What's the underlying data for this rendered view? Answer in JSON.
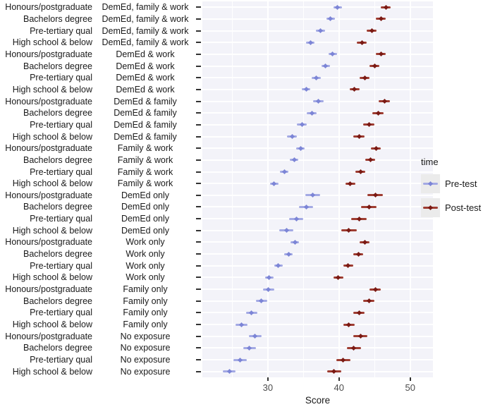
{
  "chart_data": {
    "type": "scatter",
    "subtype": "pointrange-forest-plot",
    "title": "",
    "xlabel": "Score",
    "x_ticks": [
      30,
      40,
      50
    ],
    "x_minor_ticks": [
      25,
      35,
      45
    ],
    "xlim": [
      20.8,
      53.2
    ],
    "grid": "on",
    "legend_position": "right",
    "legend": {
      "title": "time",
      "entries": [
        {
          "label": "Pre-test",
          "line_color": "#a3a9e4",
          "marker_color": "#7c85d6"
        },
        {
          "label": "Post-test",
          "line_color": "#9e3c31",
          "marker_color": "#7a1a14"
        }
      ]
    },
    "y_axis": {
      "education_levels": [
        "Honours/postgraduate",
        "Bachelors degree",
        "Pre-tertiary qual",
        "High school & below"
      ],
      "exposure_groups": [
        "DemEd, family & work",
        "DemEd & work",
        "DemEd & family",
        "Family & work",
        "DemEd only",
        "Work only",
        "Family only",
        "No exposure"
      ]
    },
    "rows": [
      {
        "education": "Honours/postgraduate",
        "exposure": "DemEd, family & work",
        "pre": 39.8,
        "pre_err": 0.6,
        "post": 46.6,
        "post_err": 0.7
      },
      {
        "education": "Bachelors degree",
        "exposure": "DemEd, family & work",
        "pre": 38.8,
        "pre_err": 0.6,
        "post": 45.9,
        "post_err": 0.7
      },
      {
        "education": "Pre-tertiary qual",
        "exposure": "DemEd, family & work",
        "pre": 37.4,
        "pre_err": 0.6,
        "post": 44.6,
        "post_err": 0.7
      },
      {
        "education": "High school & below",
        "exposure": "DemEd, family & work",
        "pre": 36.0,
        "pre_err": 0.6,
        "post": 43.2,
        "post_err": 0.7
      },
      {
        "education": "Honours/postgraduate",
        "exposure": "DemEd & work",
        "pre": 39.1,
        "pre_err": 0.6,
        "post": 45.9,
        "post_err": 0.7
      },
      {
        "education": "Bachelors degree",
        "exposure": "DemEd & work",
        "pre": 38.1,
        "pre_err": 0.6,
        "post": 45.0,
        "post_err": 0.7
      },
      {
        "education": "Pre-tertiary qual",
        "exposure": "DemEd & work",
        "pre": 36.8,
        "pre_err": 0.6,
        "post": 43.6,
        "post_err": 0.7
      },
      {
        "education": "High school & below",
        "exposure": "DemEd & work",
        "pre": 35.4,
        "pre_err": 0.6,
        "post": 42.2,
        "post_err": 0.7
      },
      {
        "education": "Honours/postgraduate",
        "exposure": "DemEd & family",
        "pre": 37.1,
        "pre_err": 0.7,
        "post": 46.4,
        "post_err": 0.8
      },
      {
        "education": "Bachelors degree",
        "exposure": "DemEd & family",
        "pre": 36.2,
        "pre_err": 0.7,
        "post": 45.5,
        "post_err": 0.8
      },
      {
        "education": "Pre-tertiary qual",
        "exposure": "DemEd & family",
        "pre": 34.8,
        "pre_err": 0.7,
        "post": 44.2,
        "post_err": 0.8
      },
      {
        "education": "High school & below",
        "exposure": "DemEd & family",
        "pre": 33.4,
        "pre_err": 0.7,
        "post": 42.8,
        "post_err": 0.8
      },
      {
        "education": "Honours/postgraduate",
        "exposure": "Family & work",
        "pre": 34.6,
        "pre_err": 0.6,
        "post": 45.2,
        "post_err": 0.7
      },
      {
        "education": "Bachelors degree",
        "exposure": "Family & work",
        "pre": 33.7,
        "pre_err": 0.6,
        "post": 44.4,
        "post_err": 0.7
      },
      {
        "education": "Pre-tertiary qual",
        "exposure": "Family & work",
        "pre": 32.3,
        "pre_err": 0.6,
        "post": 43.0,
        "post_err": 0.7
      },
      {
        "education": "High school & below",
        "exposure": "Family & work",
        "pre": 30.9,
        "pre_err": 0.6,
        "post": 41.6,
        "post_err": 0.7
      },
      {
        "education": "Honours/postgraduate",
        "exposure": "DemEd only",
        "pre": 36.3,
        "pre_err": 1.0,
        "post": 45.1,
        "post_err": 1.1
      },
      {
        "education": "Bachelors degree",
        "exposure": "DemEd only",
        "pre": 35.4,
        "pre_err": 1.0,
        "post": 44.2,
        "post_err": 1.1
      },
      {
        "education": "Pre-tertiary qual",
        "exposure": "DemEd only",
        "pre": 34.0,
        "pre_err": 1.0,
        "post": 42.8,
        "post_err": 1.1
      },
      {
        "education": "High school & below",
        "exposure": "DemEd only",
        "pre": 32.6,
        "pre_err": 1.0,
        "post": 41.4,
        "post_err": 1.1
      },
      {
        "education": "Honours/postgraduate",
        "exposure": "Work only",
        "pre": 33.8,
        "pre_err": 0.6,
        "post": 43.6,
        "post_err": 0.7
      },
      {
        "education": "Bachelors degree",
        "exposure": "Work only",
        "pre": 32.9,
        "pre_err": 0.6,
        "post": 42.7,
        "post_err": 0.7
      },
      {
        "education": "Pre-tertiary qual",
        "exposure": "Work only",
        "pre": 31.5,
        "pre_err": 0.6,
        "post": 41.3,
        "post_err": 0.7
      },
      {
        "education": "High school & below",
        "exposure": "Work only",
        "pre": 30.2,
        "pre_err": 0.6,
        "post": 39.9,
        "post_err": 0.7
      },
      {
        "education": "Honours/postgraduate",
        "exposure": "Family only",
        "pre": 30.1,
        "pre_err": 0.8,
        "post": 45.1,
        "post_err": 0.8
      },
      {
        "education": "Bachelors degree",
        "exposure": "Family only",
        "pre": 29.1,
        "pre_err": 0.8,
        "post": 44.2,
        "post_err": 0.8
      },
      {
        "education": "Pre-tertiary qual",
        "exposure": "Family only",
        "pre": 27.7,
        "pre_err": 0.8,
        "post": 42.8,
        "post_err": 0.8
      },
      {
        "education": "High school & below",
        "exposure": "Family only",
        "pre": 26.3,
        "pre_err": 0.8,
        "post": 41.4,
        "post_err": 0.8
      },
      {
        "education": "Honours/postgraduate",
        "exposure": "No exposure",
        "pre": 28.2,
        "pre_err": 0.9,
        "post": 43.0,
        "post_err": 1.0
      },
      {
        "education": "Bachelors degree",
        "exposure": "No exposure",
        "pre": 27.4,
        "pre_err": 0.9,
        "post": 42.1,
        "post_err": 1.0
      },
      {
        "education": "Pre-tertiary qual",
        "exposure": "No exposure",
        "pre": 26.1,
        "pre_err": 0.9,
        "post": 40.6,
        "post_err": 1.0
      },
      {
        "education": "High school & below",
        "exposure": "No exposure",
        "pre": 24.6,
        "pre_err": 0.9,
        "post": 39.3,
        "post_err": 1.0
      }
    ],
    "style": {
      "panel_bg": "#f3f3f9",
      "gridline_color": "#ffffff",
      "tick_color": "#333333",
      "axis_text_color": "#4d4d4d",
      "label_text_color": "#1a1a1a"
    }
  }
}
